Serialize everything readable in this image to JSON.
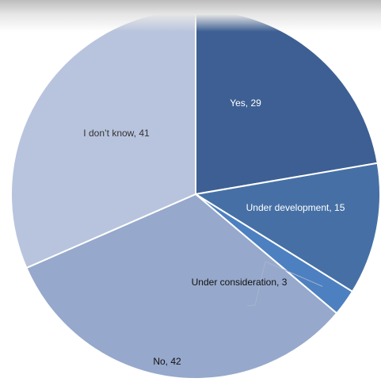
{
  "chart_data": {
    "type": "pie",
    "title": "",
    "slices": [
      {
        "label": "Yes, 29",
        "category": "Yes",
        "value": 29,
        "color": "#3d5f93",
        "text_color": "#ffffff"
      },
      {
        "label": "Under development, 15",
        "category": "Under development",
        "value": 15,
        "color": "#4670a5",
        "text_color": "#ffffff"
      },
      {
        "label": "Under consideration, 3",
        "category": "Under consideration",
        "value": 3,
        "color": "#4d80c0",
        "text_color": "#111111"
      },
      {
        "label": "No, 42",
        "category": "No",
        "value": 42,
        "color": "#96a8cb",
        "text_color": "#111111"
      },
      {
        "label": "I don’t know, 41",
        "category": "I don’t know",
        "value": 41,
        "color": "#b8c4dd",
        "text_color": "#333333"
      }
    ],
    "start_angle_deg": 0,
    "direction": "clockwise",
    "legend": "none",
    "slice_border_color": "#ffffff"
  }
}
